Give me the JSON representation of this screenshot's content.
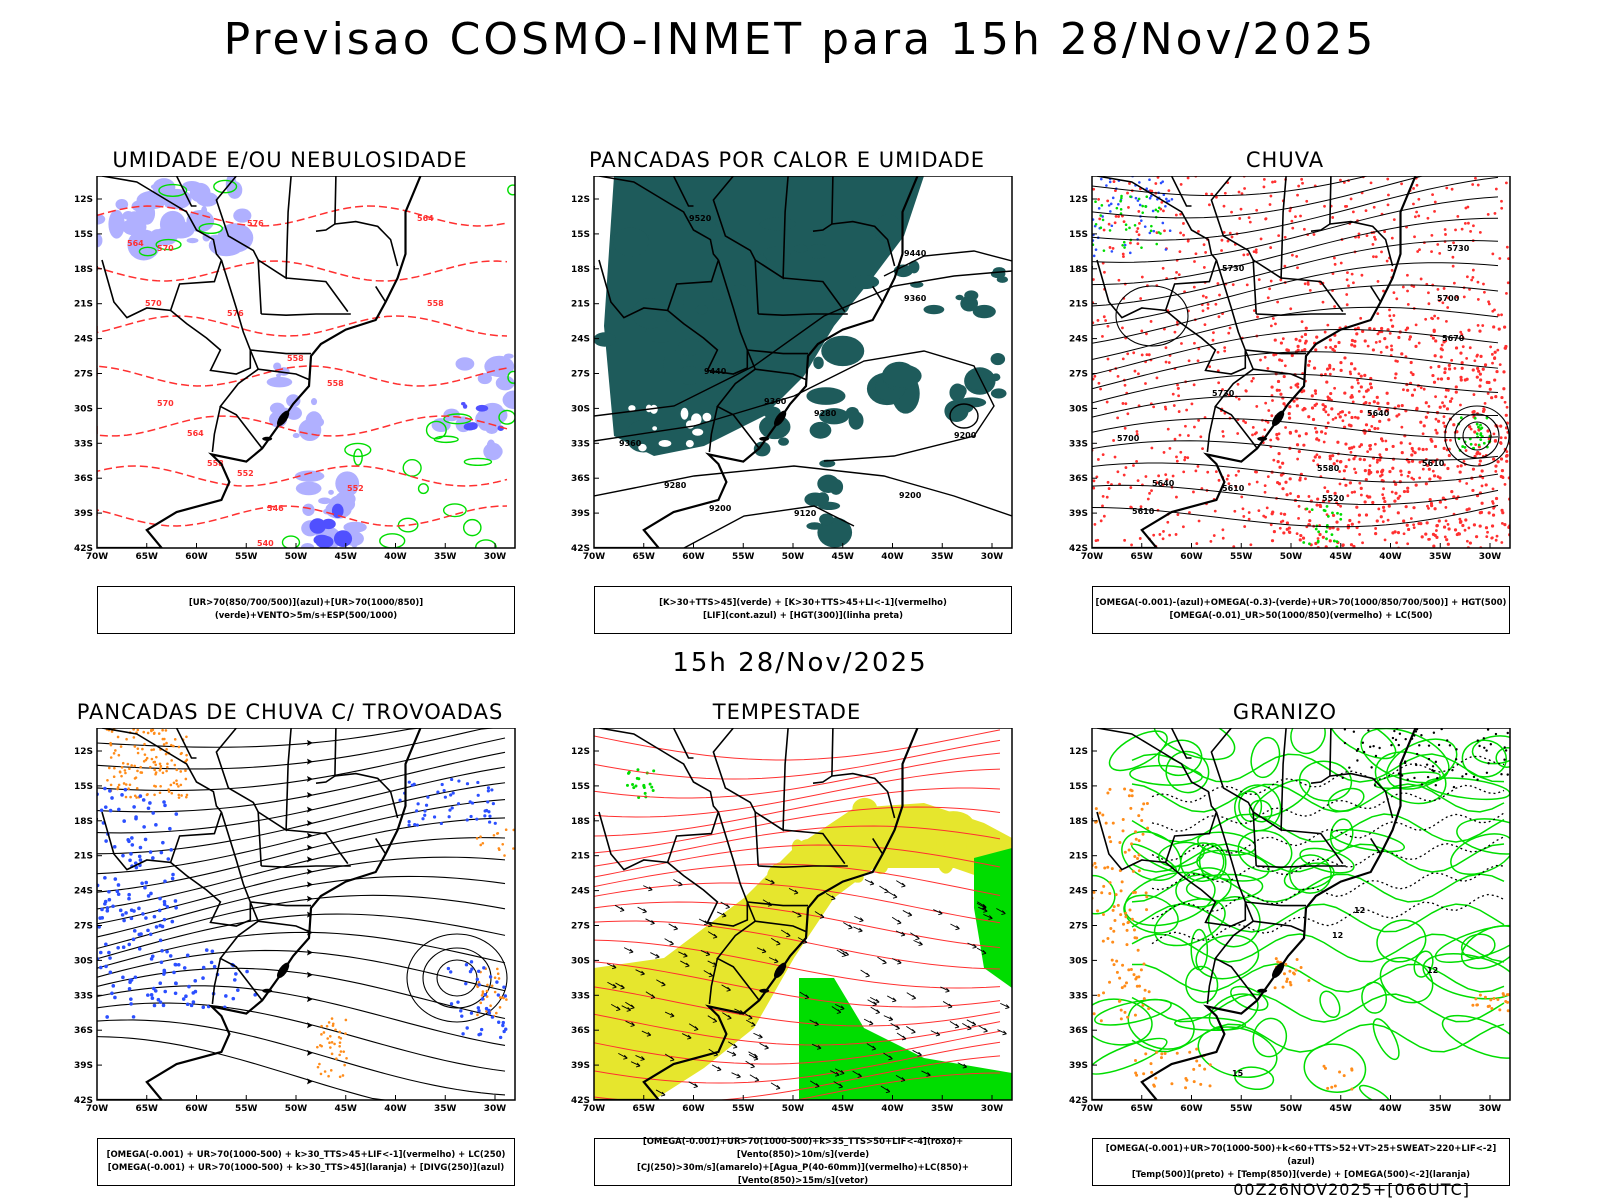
{
  "title": "Previsao COSMO-INMET  para 15h 28/Nov/2025",
  "mid_label": "15h 28/Nov/2025",
  "footer": "00Z26NOV2025+[066UTC]",
  "lat_ticks": [
    "12S",
    "15S",
    "18S",
    "21S",
    "24S",
    "27S",
    "30S",
    "33S",
    "36S",
    "39S",
    "42S"
  ],
  "lon_ticks": [
    "70W",
    "65W",
    "60W",
    "55W",
    "50W",
    "45W",
    "40W",
    "35W",
    "30W"
  ],
  "panels": [
    {
      "title": "UMIDADE E/OU NEBULOSIDADE",
      "legend": [
        "[UR>70(850/700/500)](azul)+[UR>70(1000/850)](verde)+VENTO>5m/s+ESP(500/1000)"
      ],
      "contour_labels": [
        "564",
        "570",
        "576",
        "570",
        "576",
        "570",
        "564",
        "558",
        "558",
        "552",
        "552",
        "546",
        "540",
        "564",
        "558",
        "558"
      ]
    },
    {
      "title": "PANCADAS POR CALOR E UMIDADE",
      "legend": [
        "[K>30+TTS>45](verde)  +  [K>30+TTS>45+LI<-1](vermelho)",
        "[LIF](cont.azul)  +  [HGT(300)](linha preta)"
      ],
      "contour_labels": [
        "9520",
        "9440",
        "9360",
        "9440",
        "9360",
        "9280",
        "9200",
        "9360",
        "9280",
        "9200",
        "9120",
        "9200"
      ]
    },
    {
      "title": "CHUVA",
      "legend": [
        "[OMEGA(-0.001)-(azul)+OMEGA(-0.3)-(verde)+UR>70(1000/850/700/500)]  +  HGT(500)",
        "[OMEGA(-0.01)_UR>50(1000/850)(vermelho)  +  LC(500)"
      ],
      "contour_labels": [
        "5730",
        "5730",
        "5700",
        "5670",
        "5640",
        "5610",
        "5700",
        "5640",
        "5610",
        "5580",
        "5520",
        "5730",
        "5610"
      ]
    },
    {
      "title": "PANCADAS DE CHUVA C/ TROVOADAS",
      "legend": [
        "[OMEGA(-0.001)  +  UR>70(1000-500)  +  k>30_TTS>45+LIF<-1](vermelho)  +  LC(250)",
        "[OMEGA(-0.001)  +  UR>70(1000-500)  +  k>30_TTS>45](laranja)  +  [DIVG(250)](azul)"
      ],
      "contour_labels": []
    },
    {
      "title": "TEMPESTADE",
      "legend": [
        "[OMEGA(-0.001)+UR>70(1000-500)+k>35_TTS>50+LIF<-4](roxo)+[Vento(850)>10m/s](verde)",
        "[CJ(250)>30m/s](amarelo)+[Agua_P(40-60mm)](vermelho)+LC(850)+[Vento(850)>15m/s](vetor)"
      ],
      "contour_labels": []
    },
    {
      "title": "GRANIZO",
      "legend": [
        "[OMEGA(-0.001)+UR>70(1000-500)+k<60+TTS>52+VT>25+SWEAT>220+LIF<-2](azul)",
        "[Temp(500)](preto)  +  [Temp(850)](verde)  +  [OMEGA(500)<-2](laranja)"
      ],
      "contour_labels": [
        "12",
        "12",
        "12",
        "15"
      ]
    }
  ],
  "colors": {
    "blue_fill": "#b0b0ff",
    "dark_blue": "#5050ff",
    "green": "#00dd00",
    "red": "#ff3030",
    "teal": "#1e5b5b",
    "yellow": "#e6e62d",
    "orange": "#ff8c1a",
    "scatter_blue": "#2b4fff"
  }
}
